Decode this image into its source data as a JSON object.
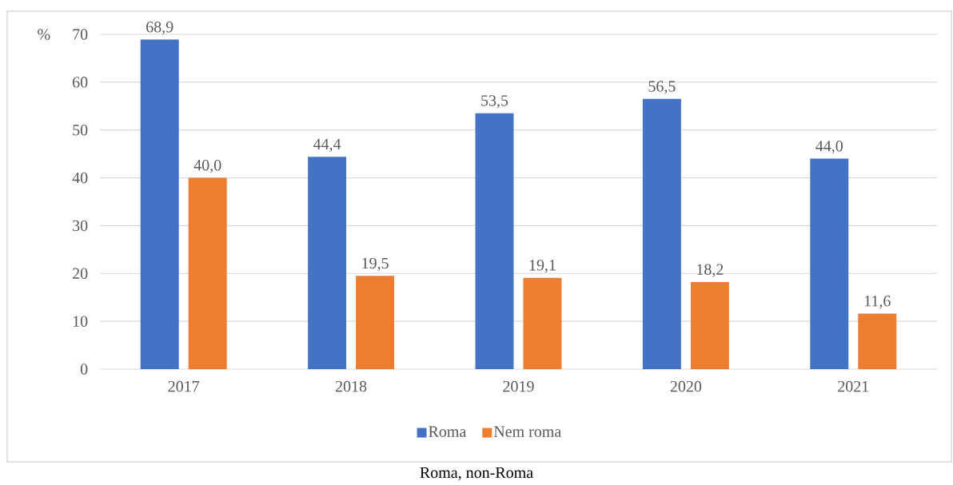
{
  "chart_data": {
    "type": "bar",
    "ylabel": "%",
    "categories": [
      "2017",
      "2018",
      "2019",
      "2020",
      "2021"
    ],
    "series": [
      {
        "name": "Roma",
        "color": "#4472c4",
        "values": [
          68.9,
          44.4,
          53.5,
          56.5,
          44.0
        ],
        "value_labels": [
          "68,9",
          "44,4",
          "53,5",
          "56,5",
          "44,0"
        ]
      },
      {
        "name": "Nem roma",
        "color": "#ed7d31",
        "values": [
          40.0,
          19.5,
          19.1,
          18.2,
          11.6
        ],
        "value_labels": [
          "40,0",
          "19,5",
          "19,1",
          "18,2",
          "11,6"
        ]
      }
    ],
    "ylim": [
      0,
      70
    ],
    "yticks": [
      0,
      10,
      20,
      30,
      40,
      50,
      60,
      70
    ],
    "grid": "y",
    "legend": "bottom",
    "annotations": [
      "Roma, non-Roma"
    ]
  }
}
